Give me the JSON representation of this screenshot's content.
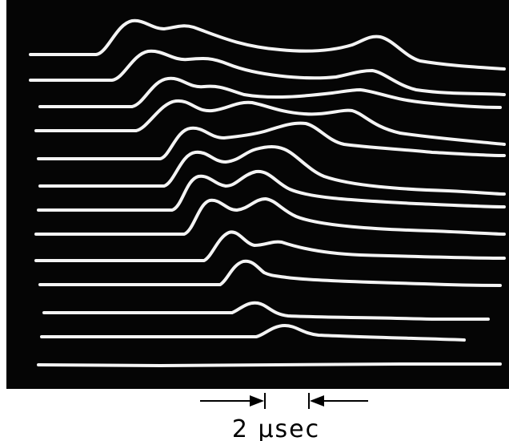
{
  "scale_label": "2 μsec"
}
